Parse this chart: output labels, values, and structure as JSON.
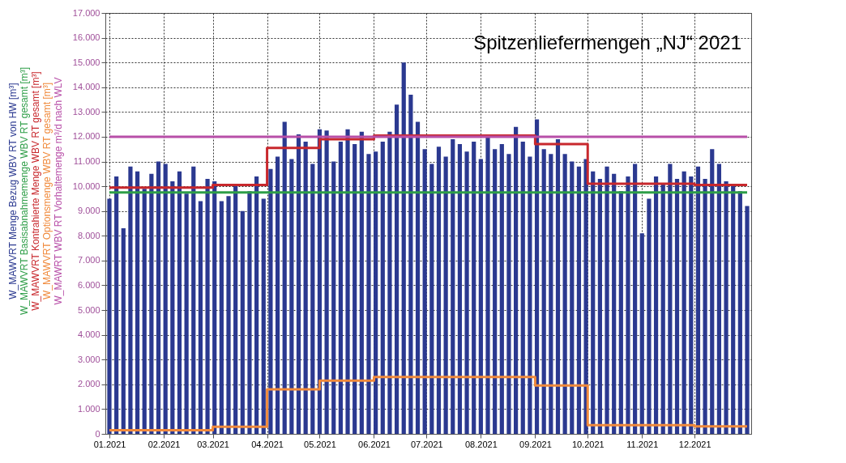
{
  "chart_data": {
    "type": "bar",
    "title": "Spitzenliefermengen „NJ“ 2021",
    "x": [
      "2021-01-01",
      "2021-01-05",
      "2021-01-09",
      "2021-01-13",
      "2021-01-17",
      "2021-01-21",
      "2021-01-25",
      "2021-01-29",
      "2021-02-02",
      "2021-02-06",
      "2021-02-10",
      "2021-02-14",
      "2021-02-18",
      "2021-02-22",
      "2021-02-26",
      "2021-03-02",
      "2021-03-06",
      "2021-03-10",
      "2021-03-14",
      "2021-03-18",
      "2021-03-22",
      "2021-03-26",
      "2021-03-30",
      "2021-04-03",
      "2021-04-07",
      "2021-04-11",
      "2021-04-15",
      "2021-04-19",
      "2021-04-23",
      "2021-04-27",
      "2021-05-01",
      "2021-05-05",
      "2021-05-09",
      "2021-05-13",
      "2021-05-17",
      "2021-05-21",
      "2021-05-25",
      "2021-05-29",
      "2021-06-02",
      "2021-06-06",
      "2021-06-10",
      "2021-06-14",
      "2021-06-18",
      "2021-06-22",
      "2021-06-26",
      "2021-06-30",
      "2021-07-04",
      "2021-07-08",
      "2021-07-12",
      "2021-07-16",
      "2021-07-20",
      "2021-07-24",
      "2021-07-28",
      "2021-08-01",
      "2021-08-05",
      "2021-08-09",
      "2021-08-13",
      "2021-08-17",
      "2021-08-21",
      "2021-08-25",
      "2021-08-29",
      "2021-09-02",
      "2021-09-06",
      "2021-09-10",
      "2021-09-14",
      "2021-09-18",
      "2021-09-22",
      "2021-09-26",
      "2021-09-30",
      "2021-10-04",
      "2021-10-08",
      "2021-10-12",
      "2021-10-16",
      "2021-10-20",
      "2021-10-24",
      "2021-10-28",
      "2021-11-01",
      "2021-11-05",
      "2021-11-09",
      "2021-11-13",
      "2021-11-17",
      "2021-11-21",
      "2021-11-25",
      "2021-11-29",
      "2021-12-03",
      "2021-12-07",
      "2021-12-11",
      "2021-12-15",
      "2021-12-19",
      "2021-12-23",
      "2021-12-27",
      "2021-12-31"
    ],
    "series": [
      {
        "name": "W_MAWVRT Menge Bezug WBV RT von HW [m³]",
        "color": "#2b3990",
        "values": [
          9500,
          10400,
          8300,
          10800,
          10600,
          9900,
          10500,
          11000,
          10900,
          10200,
          10600,
          9700,
          10800,
          9400,
          10300,
          10200,
          9400,
          9600,
          10100,
          9000,
          9800,
          10400,
          9500,
          10700,
          11200,
          12600,
          11100,
          12100,
          11800,
          10900,
          12300,
          12250,
          11000,
          11800,
          12300,
          11700,
          12200,
          11300,
          11400,
          11800,
          12200,
          13300,
          15000,
          13700,
          12600,
          11500,
          10900,
          11600,
          11200,
          11900,
          11700,
          11400,
          11800,
          11100,
          12000,
          11500,
          11700,
          11300,
          12400,
          11800,
          11200,
          12700,
          11500,
          11300,
          11900,
          11300,
          11000,
          10800,
          11100,
          10600,
          10300,
          10800,
          10500,
          9800,
          10400,
          10900,
          8100,
          9500,
          10400,
          10100,
          10900,
          10300,
          10600,
          10400,
          10800,
          10300,
          11500,
          10900,
          10200,
          10000,
          9800,
          9200
        ]
      },
      {
        "name": "W_MAWVRT Basisabnahmemenge WBV RT gesamt [m³]",
        "color": "#2e9e48",
        "type": "step",
        "x": [
          "2021-01-01",
          "2021-12-31"
        ],
        "values": [
          9750,
          9750
        ]
      },
      {
        "name": "W_MAWVRT Kontrahierte Menge WBV RT gesamt [m³]",
        "color": "#c8282d",
        "type": "step",
        "x": [
          "2021-01-01",
          "2021-03-01",
          "2021-04-01",
          "2021-05-01",
          "2021-06-01",
          "2021-09-01",
          "2021-10-01",
          "2021-12-01",
          "2021-12-31"
        ],
        "values": [
          9950,
          10050,
          11550,
          11900,
          12050,
          11700,
          10100,
          10050,
          10050
        ]
      },
      {
        "name": "W_MAWVRT Optionsmenge WBV RT gesamt [m³]",
        "color": "#f08a3c",
        "type": "step",
        "x": [
          "2021-01-01",
          "2021-03-01",
          "2021-04-01",
          "2021-05-01",
          "2021-06-01",
          "2021-09-01",
          "2021-10-01",
          "2021-12-01",
          "2021-12-31"
        ],
        "values": [
          150,
          290,
          1800,
          2150,
          2300,
          1950,
          350,
          300,
          300
        ]
      },
      {
        "name": "W_MAWRT WBV RT Vorhaltemenge m³/d nach WLV",
        "color": "#b84fa8",
        "type": "step",
        "x": [
          "2021-01-01",
          "2021-12-31"
        ],
        "values": [
          12000,
          12000
        ]
      }
    ],
    "xlim": [
      "2021-01-01",
      "2021-12-31"
    ],
    "xticks": [
      {
        "value": "2021-01-01",
        "label": "01.2021"
      },
      {
        "value": "2021-02-01",
        "label": "02.2021"
      },
      {
        "value": "2021-03-01",
        "label": "03.2021"
      },
      {
        "value": "2021-04-01",
        "label": "04.2021"
      },
      {
        "value": "2021-05-01",
        "label": "05.2021"
      },
      {
        "value": "2021-06-01",
        "label": "06.2021"
      },
      {
        "value": "2021-07-01",
        "label": "07.2021"
      },
      {
        "value": "2021-08-01",
        "label": "08.2021"
      },
      {
        "value": "2021-09-01",
        "label": "09.2021"
      },
      {
        "value": "2021-10-01",
        "label": "10.2021"
      },
      {
        "value": "2021-11-01",
        "label": "11.2021"
      },
      {
        "value": "2021-12-01",
        "label": "12.2021"
      }
    ],
    "ylim": [
      0,
      17000
    ],
    "yticks": [
      0,
      {
        "value": 1000,
        "label": "1.000"
      },
      {
        "value": 2000,
        "label": "2.000"
      },
      {
        "value": 3000,
        "label": "3.000"
      },
      {
        "value": 4000,
        "label": "4.000"
      },
      {
        "value": 5000,
        "label": "5.000"
      },
      {
        "value": 6000,
        "label": "6.000"
      },
      {
        "value": 7000,
        "label": "7.000"
      },
      {
        "value": 8000,
        "label": "8.000"
      },
      {
        "value": 9000,
        "label": "9.000"
      },
      {
        "value": 10000,
        "label": "10.000"
      },
      {
        "value": 11000,
        "label": "11.000"
      },
      {
        "value": 12000,
        "label": "12.000"
      },
      {
        "value": 13000,
        "label": "13.000"
      },
      {
        "value": 14000,
        "label": "14.000"
      },
      {
        "value": 15000,
        "label": "15.000"
      },
      {
        "value": 16000,
        "label": "16.000"
      },
      {
        "value": 17000,
        "label": "17.000"
      }
    ],
    "grid": true,
    "legend": "left",
    "marker": "none"
  }
}
